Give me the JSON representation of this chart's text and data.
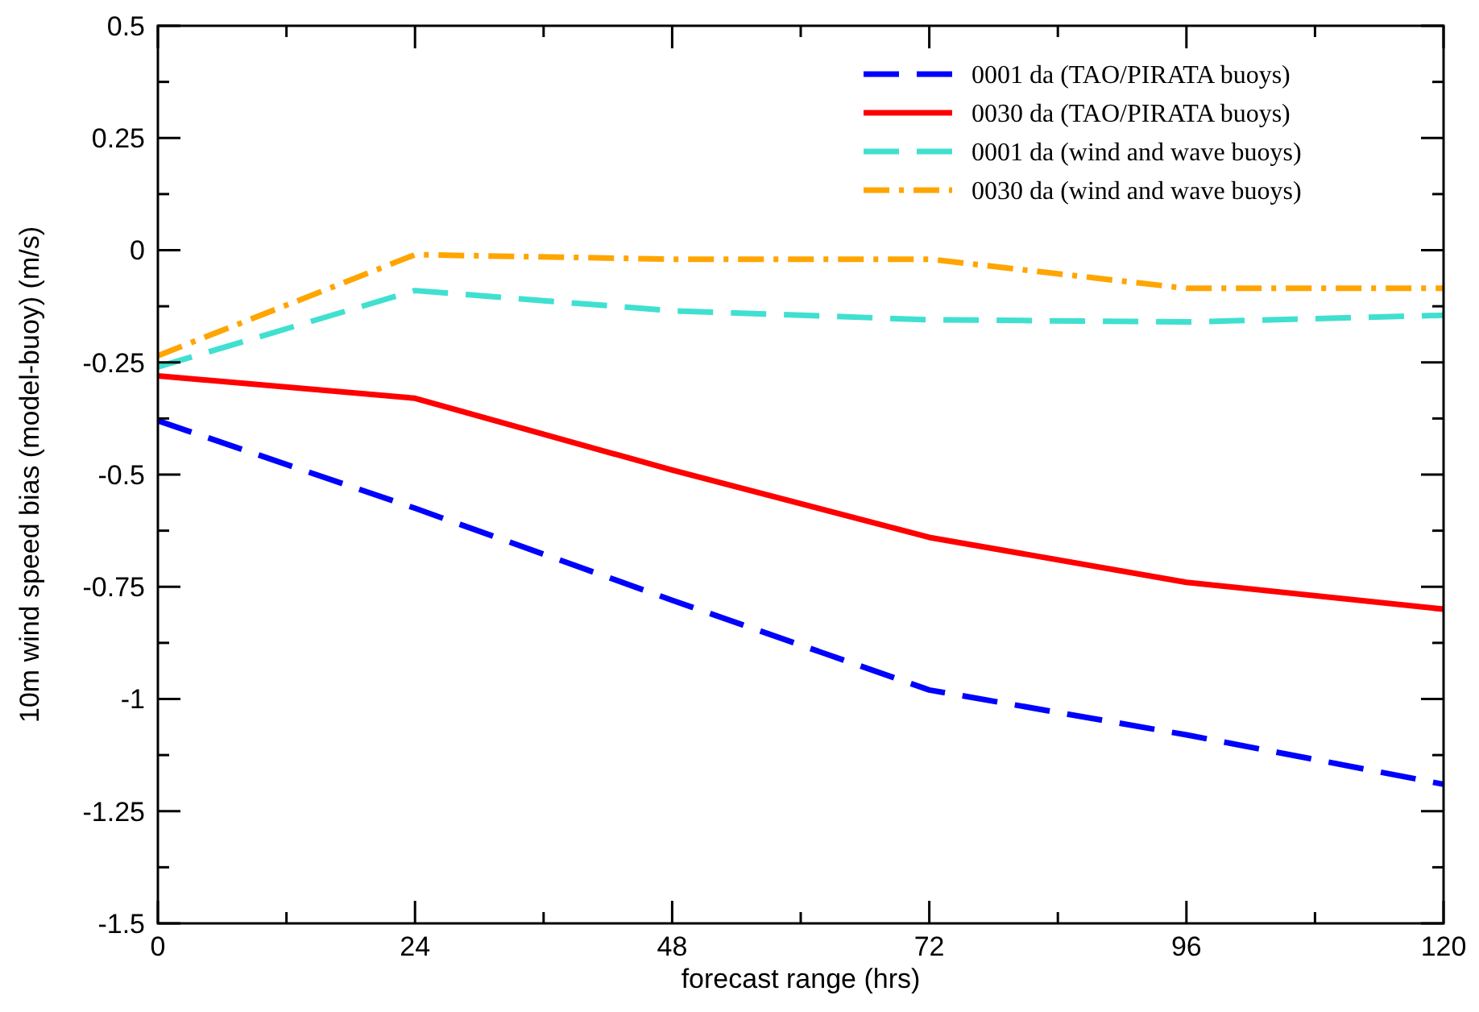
{
  "chart_data": {
    "type": "line",
    "xlabel": "forecast range (hrs)",
    "ylabel": "10m wind speed bias (model-buoy) (m/s)",
    "x": [
      0,
      24,
      48,
      72,
      96,
      120
    ],
    "series": [
      {
        "name": "0001 da (TAO/PIRATA buoys)",
        "color": "#0000ff",
        "line_style": "dashed",
        "values": [
          -0.38,
          -0.575,
          -0.78,
          -0.98,
          -1.08,
          -1.19
        ]
      },
      {
        "name": "0030 da (TAO/PIRATA buoys)",
        "color": "#ff0000",
        "line_style": "solid",
        "values": [
          -0.28,
          -0.33,
          -0.49,
          -0.64,
          -0.74,
          -0.8
        ]
      },
      {
        "name": "0001 da (wind and wave buoys)",
        "color": "#40e0d0",
        "line_style": "dashed",
        "values": [
          -0.26,
          -0.09,
          -0.135,
          -0.155,
          -0.16,
          -0.145
        ]
      },
      {
        "name": "0030 da (wind and wave buoys)",
        "color": "#ffa500",
        "line_style": "dotted",
        "values": [
          -0.235,
          -0.01,
          -0.02,
          -0.02,
          -0.085,
          -0.085
        ]
      }
    ],
    "xlim": [
      0,
      120
    ],
    "xticks": [
      0,
      {
        "value": 12,
        "label": null
      },
      24,
      {
        "value": 36,
        "label": null
      },
      48,
      {
        "value": 60,
        "label": null
      },
      72,
      {
        "value": 84,
        "label": null
      },
      96,
      {
        "value": 108,
        "label": null
      },
      120
    ],
    "ylim": [
      -1.5,
      0.5
    ],
    "yticks": [
      -1.5,
      {
        "value": -1.375,
        "label": null
      },
      -1.25,
      {
        "value": -1.125,
        "label": null
      },
      -1,
      {
        "value": -0.875,
        "label": null
      },
      -0.75,
      {
        "value": -0.625,
        "label": null
      },
      -0.5,
      {
        "value": -0.375,
        "label": null
      },
      -0.25,
      {
        "value": -0.125,
        "label": null
      },
      0,
      {
        "value": 0.125,
        "label": null
      },
      0.25,
      {
        "value": 0.375,
        "label": null
      },
      0.5
    ],
    "legend": "top right",
    "grid": false,
    "marker": "none"
  }
}
